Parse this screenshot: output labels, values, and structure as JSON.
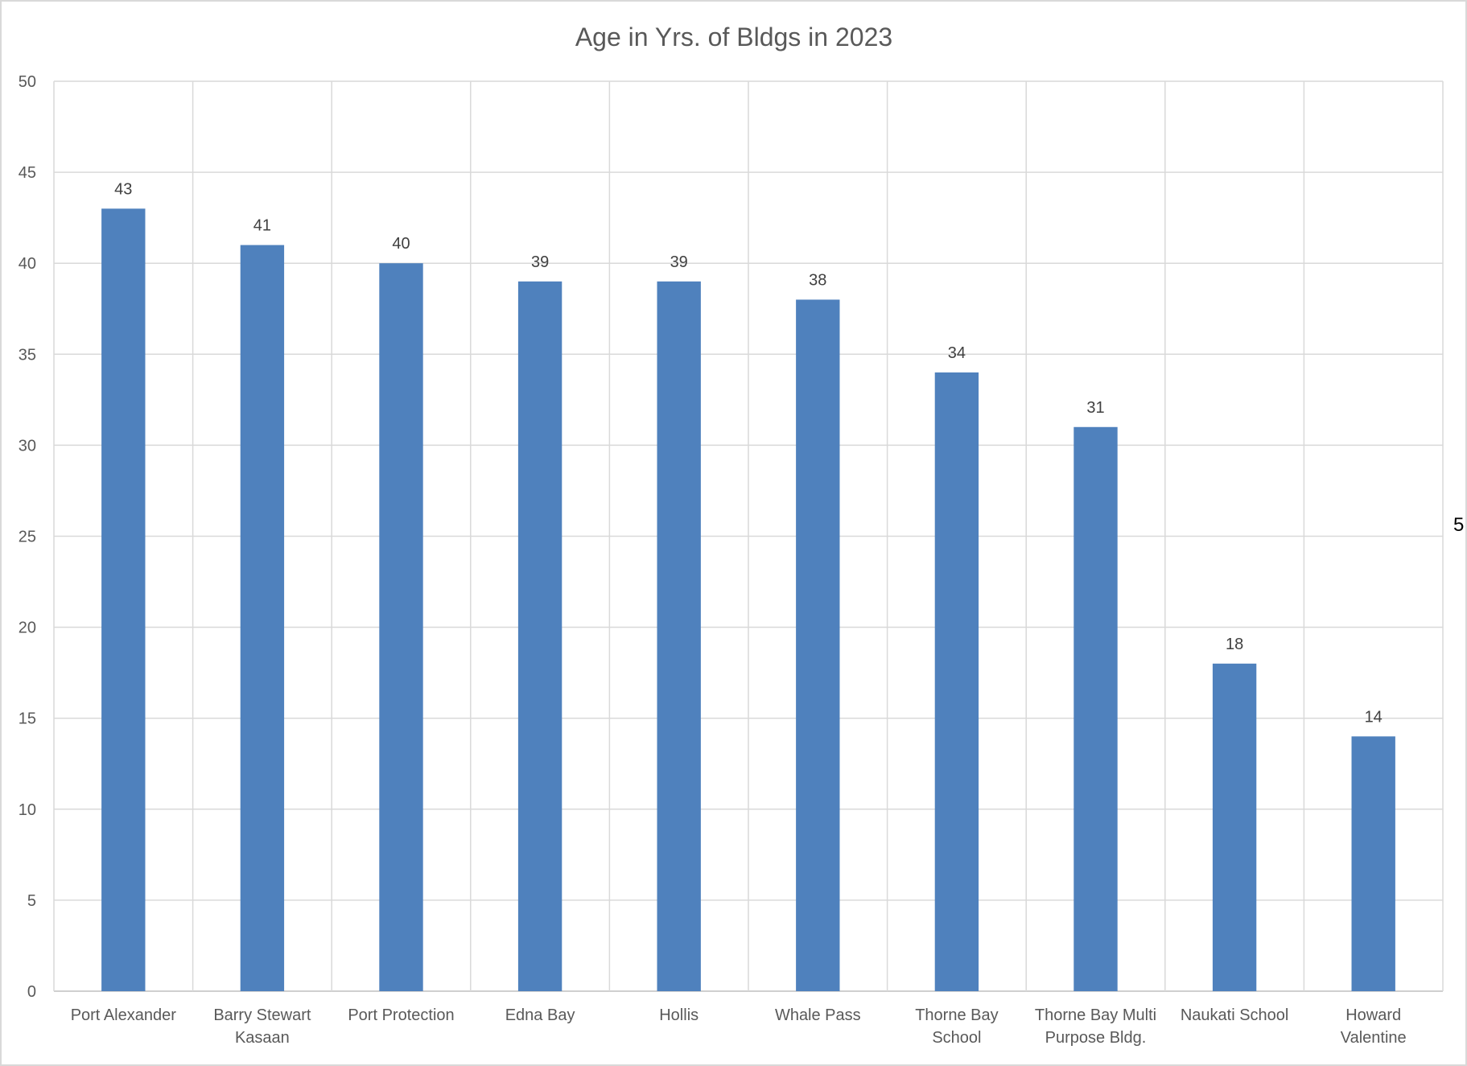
{
  "chart_data": {
    "type": "bar",
    "title": "Age in Yrs. of Bldgs in 2023",
    "xlabel": "",
    "ylabel": "",
    "ylim": [
      0,
      50
    ],
    "yticks": [
      0,
      5,
      10,
      15,
      20,
      25,
      30,
      35,
      40,
      45,
      50
    ],
    "grid": true,
    "legend": "none",
    "categories": [
      [
        "Port Alexander"
      ],
      [
        "Barry Stewart",
        "Kasaan"
      ],
      [
        "Port Protection"
      ],
      [
        "Edna Bay"
      ],
      [
        "Hollis"
      ],
      [
        "Whale Pass"
      ],
      [
        "Thorne Bay",
        "School"
      ],
      [
        "Thorne Bay Multi",
        "Purpose Bldg."
      ],
      [
        "Naukati School"
      ],
      [
        "Howard",
        "Valentine"
      ]
    ],
    "values": [
      43,
      41,
      40,
      39,
      39,
      38,
      34,
      31,
      18,
      14
    ],
    "data_labels": true
  },
  "colors": {
    "bar": "#4f81bd",
    "grid": "#d9d9d9",
    "border": "#bfbfbf",
    "text": "#595959"
  },
  "edge_fragment": "5"
}
